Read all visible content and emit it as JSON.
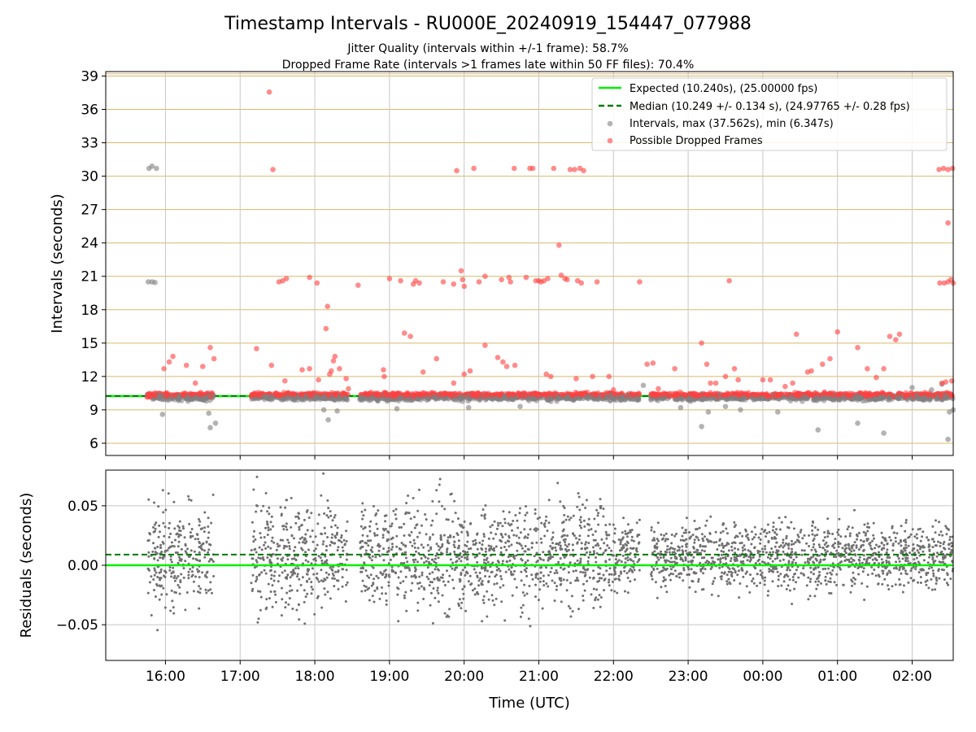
{
  "chart_data": [
    {
      "type": "scatter",
      "title": "Timestamp Intervals - RU000E_20240919_154447_077988",
      "subtitle_lines": [
        "Jitter Quality (intervals within +/-1 frame): 58.7%",
        "Dropped Frame Rate (intervals >1 frames late within 50 FF files): 70.4%"
      ],
      "xlabel": "",
      "ylabel": "Intervals (seconds)",
      "x_axis_unit": "hours (UTC), 2024-09-19 15:00 = 0",
      "xlim": [
        0.2,
        11.55
      ],
      "ylim": [
        4.9,
        39.4
      ],
      "yticks": [
        6,
        9,
        12,
        15,
        18,
        21,
        24,
        27,
        30,
        33,
        36,
        39
      ],
      "grid": true,
      "legend_position": "top-right",
      "reference_lines": [
        {
          "name": "Expected (10.240s), (25.00000 fps)",
          "value": 10.24,
          "color": "#00ee00",
          "style": "solid"
        },
        {
          "name": "Median (10.249 +/- 0.134 s), (24.97765 +/- 0.28 fps)",
          "value": 10.249,
          "color": "#007a00",
          "style": "dashed"
        }
      ],
      "series": [
        {
          "name": "Intervals, max (37.562s), min (6.347s)",
          "color": "#808080",
          "points": [
            [
              0.77,
              20.5
            ],
            [
              0.82,
              20.5
            ],
            [
              0.86,
              20.45
            ],
            [
              0.78,
              30.7
            ],
            [
              0.82,
              30.9
            ],
            [
              0.88,
              30.7
            ],
            [
              0.96,
              8.6
            ],
            [
              1.6,
              7.4
            ],
            [
              1.67,
              7.8
            ],
            [
              1.58,
              8.7
            ],
            [
              3.18,
              8.1
            ],
            [
              3.3,
              8.9
            ],
            [
              3.12,
              9.0
            ],
            [
              4.1,
              9.1
            ],
            [
              5.06,
              9.2
            ],
            [
              5.75,
              9.3
            ],
            [
              7.4,
              11.2
            ],
            [
              7.9,
              9.2
            ],
            [
              8.18,
              7.5
            ],
            [
              8.27,
              8.8
            ],
            [
              8.5,
              9.3
            ],
            [
              8.7,
              9.0
            ],
            [
              9.2,
              8.8
            ],
            [
              9.74,
              7.2
            ],
            [
              10.27,
              7.8
            ],
            [
              10.62,
              6.9
            ],
            [
              11.0,
              11.0
            ],
            [
              11.4,
              11.3
            ],
            [
              11.48,
              6.35
            ],
            [
              11.5,
              8.8
            ],
            [
              11.55,
              9.0
            ],
            [
              11.26,
              10.8
            ]
          ]
        },
        {
          "name": "Possible Dropped Frames",
          "color": "#ff4040",
          "points": [
            [
              2.39,
              37.56
            ],
            [
              2.44,
              30.6
            ],
            [
              2.52,
              20.5
            ],
            [
              2.57,
              20.6
            ],
            [
              2.62,
              20.8
            ],
            [
              0.98,
              12.7
            ],
            [
              1.05,
              13.3
            ],
            [
              1.1,
              13.8
            ],
            [
              1.28,
              13.0
            ],
            [
              1.4,
              11.4
            ],
            [
              1.5,
              12.9
            ],
            [
              1.6,
              14.6
            ],
            [
              1.65,
              13.6
            ],
            [
              2.22,
              14.5
            ],
            [
              2.42,
              13.0
            ],
            [
              2.6,
              11.6
            ],
            [
              2.83,
              12.6
            ],
            [
              2.93,
              12.7
            ],
            [
              2.93,
              20.9
            ],
            [
              3.03,
              20.4
            ],
            [
              3.05,
              11.7
            ],
            [
              3.15,
              16.3
            ],
            [
              3.17,
              18.3
            ],
            [
              3.2,
              12.2
            ],
            [
              3.22,
              12.5
            ],
            [
              3.25,
              13.4
            ],
            [
              3.27,
              13.8
            ],
            [
              3.33,
              12.7
            ],
            [
              3.42,
              11.8
            ],
            [
              3.45,
              10.9
            ],
            [
              3.58,
              20.2
            ],
            [
              3.92,
              12.6
            ],
            [
              3.93,
              12.0
            ],
            [
              4.0,
              20.8
            ],
            [
              4.15,
              20.6
            ],
            [
              4.2,
              15.9
            ],
            [
              4.28,
              15.6
            ],
            [
              4.32,
              20.3
            ],
            [
              4.35,
              20.6
            ],
            [
              4.4,
              20.4
            ],
            [
              4.45,
              12.4
            ],
            [
              4.63,
              13.6
            ],
            [
              4.72,
              20.5
            ],
            [
              4.9,
              30.5
            ],
            [
              4.86,
              11.4
            ],
            [
              4.86,
              20.3
            ],
            [
              4.96,
              21.5
            ],
            [
              4.98,
              20.7
            ],
            [
              5.0,
              12.2
            ],
            [
              5.0,
              20.1
            ],
            [
              5.08,
              12.5
            ],
            [
              5.13,
              30.7
            ],
            [
              5.2,
              20.5
            ],
            [
              5.28,
              21.0
            ],
            [
              5.28,
              14.8
            ],
            [
              5.45,
              13.7
            ],
            [
              5.52,
              13.3
            ],
            [
              5.57,
              12.9
            ],
            [
              5.5,
              20.7
            ],
            [
              5.6,
              20.9
            ],
            [
              5.62,
              20.5
            ],
            [
              5.67,
              30.7
            ],
            [
              5.68,
              13.0
            ],
            [
              5.83,
              20.9
            ],
            [
              5.88,
              30.7
            ],
            [
              5.92,
              30.7
            ],
            [
              5.96,
              20.6
            ],
            [
              6.0,
              20.6
            ],
            [
              6.03,
              20.5
            ],
            [
              6.07,
              20.6
            ],
            [
              6.1,
              12.2
            ],
            [
              6.12,
              20.8
            ],
            [
              6.16,
              12.0
            ],
            [
              6.2,
              30.7
            ],
            [
              6.27,
              23.8
            ],
            [
              6.3,
              21.1
            ],
            [
              6.35,
              20.8
            ],
            [
              6.38,
              20.7
            ],
            [
              6.42,
              30.6
            ],
            [
              6.48,
              30.6
            ],
            [
              6.55,
              30.7
            ],
            [
              6.6,
              30.5
            ],
            [
              6.52,
              20.6
            ],
            [
              6.57,
              20.4
            ],
            [
              6.5,
              11.8
            ],
            [
              6.72,
              12.0
            ],
            [
              6.78,
              20.5
            ],
            [
              6.94,
              12.0
            ],
            [
              7.0,
              10.8
            ],
            [
              7.35,
              20.5
            ],
            [
              7.45,
              13.1
            ],
            [
              7.53,
              13.2
            ],
            [
              7.6,
              10.9
            ],
            [
              7.82,
              12.7
            ],
            [
              8.18,
              15.0
            ],
            [
              8.25,
              13.1
            ],
            [
              8.3,
              11.4
            ],
            [
              8.37,
              11.4
            ],
            [
              8.5,
              12.0
            ],
            [
              8.55,
              20.6
            ],
            [
              8.62,
              12.7
            ],
            [
              8.67,
              11.7
            ],
            [
              9.0,
              11.7
            ],
            [
              9.1,
              11.7
            ],
            [
              9.3,
              11.1
            ],
            [
              9.4,
              11.4
            ],
            [
              9.45,
              15.8
            ],
            [
              9.6,
              12.4
            ],
            [
              9.65,
              12.5
            ],
            [
              9.8,
              13.1
            ],
            [
              9.9,
              13.6
            ],
            [
              10.0,
              16.0
            ],
            [
              10.27,
              14.6
            ],
            [
              10.4,
              12.7
            ],
            [
              10.52,
              11.9
            ],
            [
              10.62,
              12.7
            ],
            [
              10.7,
              15.6
            ],
            [
              10.78,
              15.3
            ],
            [
              10.83,
              15.8
            ],
            [
              11.36,
              30.6
            ],
            [
              11.42,
              30.7
            ],
            [
              11.48,
              30.6
            ],
            [
              11.48,
              25.8
            ],
            [
              11.54,
              30.7
            ],
            [
              11.37,
              20.4
            ],
            [
              11.43,
              20.4
            ],
            [
              11.48,
              20.5
            ],
            [
              11.52,
              20.7
            ],
            [
              11.55,
              20.4
            ],
            [
              11.4,
              11.4
            ],
            [
              11.45,
              11.5
            ],
            [
              11.53,
              11.6
            ]
          ]
        }
      ],
      "dense_band": {
        "note": "Most intervals cluster between 9.5 and 10.8 s across the whole session",
        "segments": [
          [
            0.75,
            1.65
          ],
          [
            2.15,
            3.45
          ],
          [
            3.6,
            3.95
          ],
          [
            3.95,
            5.75
          ],
          [
            5.75,
            6.75
          ],
          [
            6.75,
            7.35
          ],
          [
            7.5,
            7.9
          ],
          [
            7.9,
            8.45
          ],
          [
            8.45,
            9.05
          ],
          [
            9.05,
            10.0
          ],
          [
            10.0,
            10.5
          ],
          [
            10.5,
            10.9
          ],
          [
            10.9,
            11.55
          ]
        ]
      }
    },
    {
      "type": "scatter",
      "title": "",
      "xlabel": "Time (UTC)",
      "ylabel": "Residuals (seconds)",
      "xlim": [
        0.2,
        11.55
      ],
      "ylim": [
        -0.08,
        0.08
      ],
      "yticks": [
        -0.05,
        0.0,
        0.05
      ],
      "ytick_labels": [
        "−0.05",
        "0.00",
        "0.05"
      ],
      "xticks": [
        1,
        2,
        3,
        4,
        5,
        6,
        7,
        8,
        9,
        10,
        11
      ],
      "xtick_labels": [
        "16:00",
        "17:00",
        "18:00",
        "19:00",
        "20:00",
        "21:00",
        "22:00",
        "23:00",
        "00:00",
        "01:00",
        "02:00"
      ],
      "grid": true,
      "reference_lines": [
        {
          "value": 0.0,
          "color": "#00ee00",
          "style": "solid"
        },
        {
          "value": 0.009,
          "color": "#007a00",
          "style": "dashed"
        }
      ],
      "series": [
        {
          "name": "",
          "color": "#707070",
          "count_note": "approx. 3000 residual points, spread ±0.08 s, tighter after 22:00"
        }
      ]
    }
  ]
}
